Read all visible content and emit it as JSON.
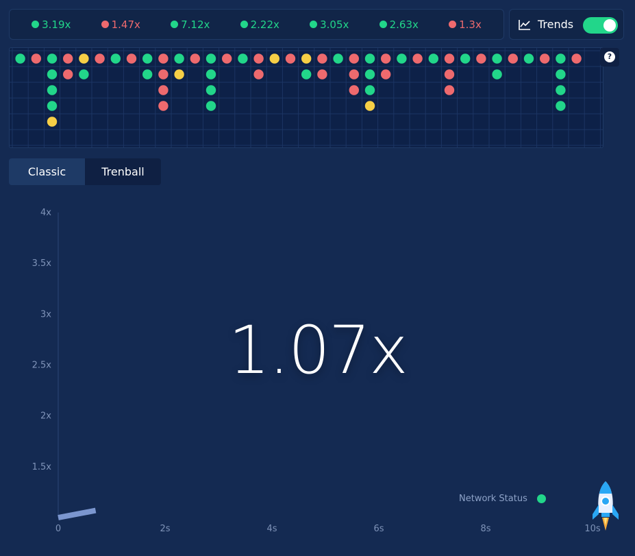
{
  "colors": {
    "green": "#22d68a",
    "red": "#ee6a6e",
    "yellow": "#f6cf46"
  },
  "history": [
    {
      "value": "3.19x",
      "color": "green"
    },
    {
      "value": "1.47x",
      "color": "red"
    },
    {
      "value": "7.12x",
      "color": "green"
    },
    {
      "value": "2.22x",
      "color": "green"
    },
    {
      "value": "3.05x",
      "color": "green"
    },
    {
      "value": "2.63x",
      "color": "green"
    },
    {
      "value": "1.3x",
      "color": "red"
    }
  ],
  "trends": {
    "label": "Trends",
    "toggle_on": true,
    "icon": "line-chart-icon"
  },
  "help_label": "?",
  "bead_road": [
    [
      "g"
    ],
    [
      "r"
    ],
    [
      "g",
      "g",
      "g",
      "g",
      "y"
    ],
    [
      "r",
      "r"
    ],
    [
      "y",
      "g"
    ],
    [
      "r"
    ],
    [
      "g"
    ],
    [
      "r"
    ],
    [
      "g",
      "g"
    ],
    [
      "r",
      "r",
      "r",
      "r"
    ],
    [
      "g",
      "y"
    ],
    [
      "r"
    ],
    [
      "g",
      "g",
      "g",
      "g"
    ],
    [
      "r"
    ],
    [
      "g"
    ],
    [
      "r",
      "r"
    ],
    [
      "y"
    ],
    [
      "r"
    ],
    [
      "y",
      "g"
    ],
    [
      "r",
      "r"
    ],
    [
      "g"
    ],
    [
      "r",
      "r",
      "r"
    ],
    [
      "g",
      "g",
      "g",
      "y"
    ],
    [
      "r",
      "r"
    ],
    [
      "g"
    ],
    [
      "r"
    ],
    [
      "g"
    ],
    [
      "r",
      "r",
      "r"
    ],
    [
      "g"
    ],
    [
      "r"
    ],
    [
      "g",
      "g"
    ],
    [
      "r"
    ],
    [
      "g"
    ],
    [
      "r"
    ],
    [
      "g",
      "g",
      "g",
      "g"
    ],
    [
      "r"
    ]
  ],
  "tabs": [
    {
      "label": "Classic",
      "active": true
    },
    {
      "label": "Trenball",
      "active": false
    }
  ],
  "chart_data": {
    "type": "line",
    "title": "",
    "xlabel": "",
    "ylabel": "",
    "y_ticks": [
      "4x",
      "3.5x",
      "3x",
      "2.5x",
      "2x",
      "1.5x"
    ],
    "y_tick_values": [
      4,
      3.5,
      3,
      2.5,
      2,
      1.5
    ],
    "x_ticks": [
      "0",
      "2s",
      "4s",
      "6s",
      "8s",
      "10s"
    ],
    "x_tick_values": [
      0,
      2,
      4,
      6,
      8,
      10
    ],
    "xlim": [
      0,
      10
    ],
    "ylim": [
      1,
      4
    ],
    "series": [
      {
        "x": [
          0,
          0.7
        ],
        "y": [
          1.0,
          1.07
        ]
      }
    ]
  },
  "multiplier": "1.07x",
  "network_status": {
    "label": "Network Status",
    "color": "green"
  }
}
